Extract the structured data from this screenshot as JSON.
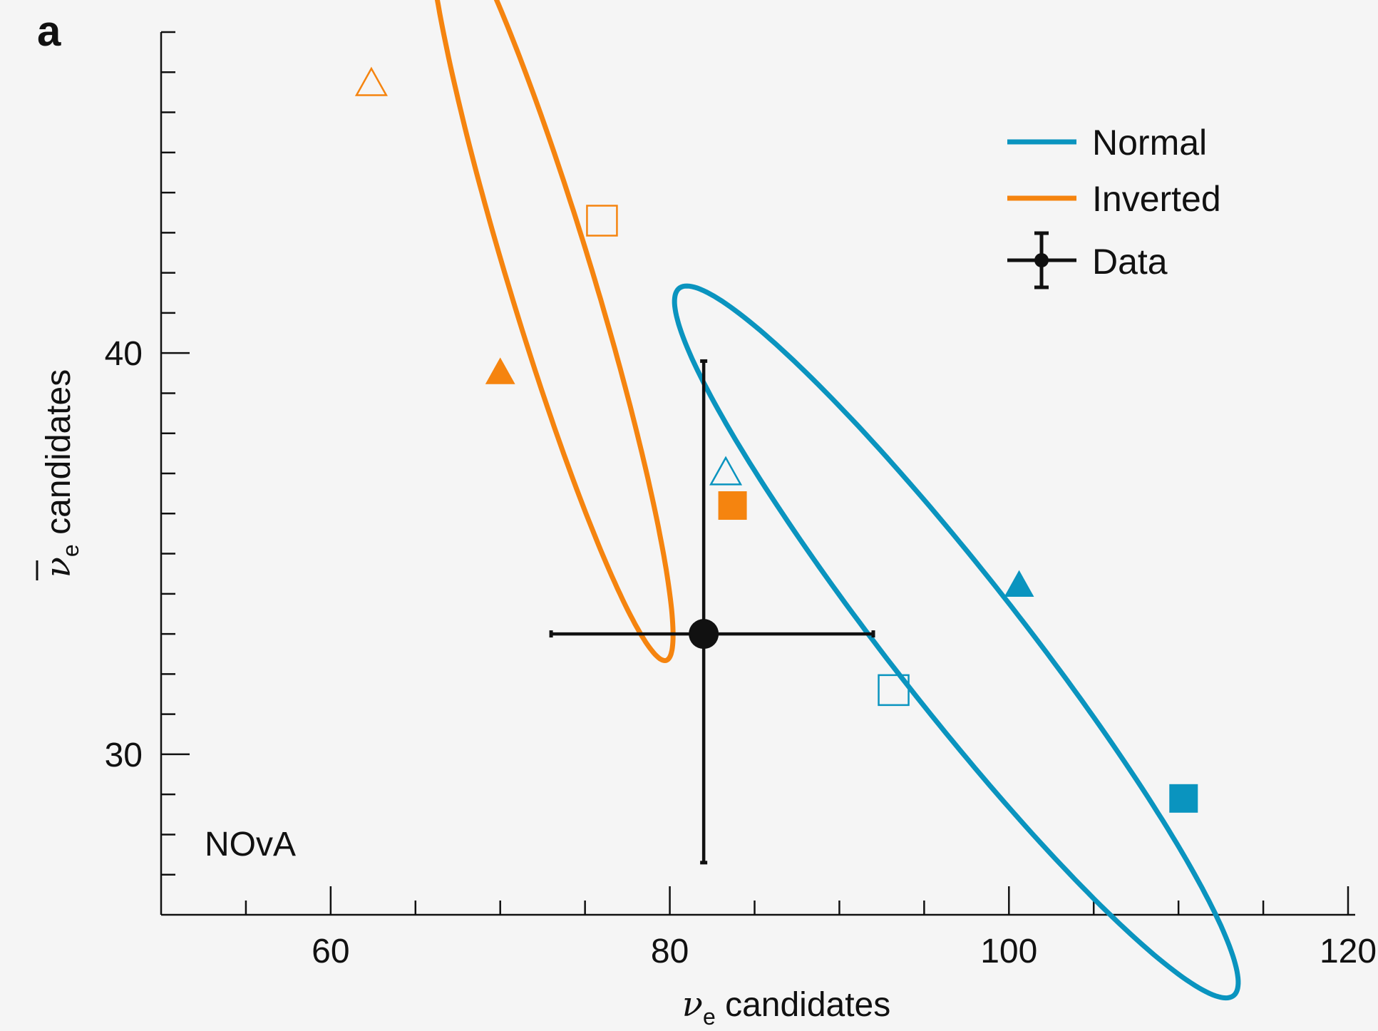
{
  "panel_label": "a",
  "experiment_label": "NOvA",
  "colors": {
    "normal": "#0a94bf",
    "inverted": "#f5840f",
    "data": "#111111",
    "background": "#f5f5f5"
  },
  "chart_data": {
    "type": "scatter",
    "xlabel": {
      "symbol": "ν",
      "subscript": "e",
      "text": " candidates"
    },
    "ylabel": {
      "symbol": "ν",
      "overline": true,
      "subscript": "e",
      "text": " candidates"
    },
    "xlim": [
      50,
      120
    ],
    "ylim": [
      26,
      48
    ],
    "x_ticks": [
      60,
      80,
      100,
      120
    ],
    "y_ticks": [
      30,
      40
    ],
    "x_minor_step": 5,
    "y_minor_step": 1,
    "legend_placement": "top-right",
    "series": [
      {
        "name": "Normal",
        "color_key": "normal",
        "ellipse": {
          "center": [
            96.9,
            32.8
          ],
          "semi_major": 18.7,
          "semi_minor": 2.3,
          "rotation_deg": -27.5
        },
        "markers": [
          {
            "shape": "triangle",
            "filled": false,
            "x": 83.3,
            "y": 37.0
          },
          {
            "shape": "triangle",
            "filled": true,
            "x": 100.6,
            "y": 34.2
          },
          {
            "shape": "square",
            "filled": false,
            "x": 93.2,
            "y": 31.6
          },
          {
            "shape": "square",
            "filled": true,
            "x": 110.3,
            "y": 28.9
          }
        ]
      },
      {
        "name": "Inverted",
        "color_key": "inverted",
        "ellipse": {
          "center": [
            73.0,
            41.8
          ],
          "semi_major": 11.7,
          "semi_minor": 2.1,
          "rotation_deg": -53.3
        },
        "markers": [
          {
            "shape": "triangle",
            "filled": false,
            "x": 62.4,
            "y": 46.7
          },
          {
            "shape": "triangle",
            "filled": true,
            "x": 70.0,
            "y": 39.5
          },
          {
            "shape": "square",
            "filled": false,
            "x": 76.0,
            "y": 43.3
          },
          {
            "shape": "square",
            "filled": true,
            "x": 83.7,
            "y": 36.2
          }
        ]
      },
      {
        "name": "Data",
        "color_key": "data",
        "points": [
          {
            "x": 82.0,
            "y": 33.0,
            "x_err": [
              9.0,
              10.0
            ],
            "y_err": [
              5.7,
              6.8
            ]
          }
        ]
      }
    ]
  }
}
